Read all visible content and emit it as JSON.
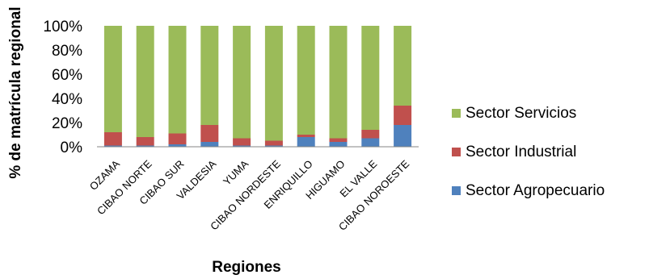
{
  "chart_data": {
    "type": "bar",
    "stacked": true,
    "normalized": true,
    "categories": [
      "OZAMA",
      "CIBAO NORTE",
      "CIBAO SUR",
      "VALDESIA",
      "YUMA",
      "CIBAO NORDESTE",
      "ENRIQUILLO",
      "HIGUAMO",
      "EL VALLE",
      "CIBAO NOROESTE"
    ],
    "series": [
      {
        "name": "Sector Agropecuario",
        "color": "#4F81BD",
        "values": [
          1,
          1,
          2,
          4,
          1,
          1,
          8,
          4,
          7,
          18
        ]
      },
      {
        "name": "Sector Industrial",
        "color": "#C0504D",
        "values": [
          11,
          7,
          9,
          14,
          6,
          4,
          2,
          3,
          7,
          16
        ]
      },
      {
        "name": "Sector Servicios",
        "color": "#9BBB59",
        "values": [
          88,
          92,
          89,
          82,
          93,
          95,
          90,
          93,
          86,
          66
        ]
      }
    ],
    "ytick_labels": [
      "0%",
      "20%",
      "40%",
      "60%",
      "80%",
      "100%"
    ],
    "ylim": [
      0,
      100
    ],
    "xlabel": "Regiones",
    "ylabel": "% de matrícula regional",
    "title": "",
    "legend_position": "right",
    "legend_order": [
      "Sector Servicios",
      "Sector Industrial",
      "Sector Agropecuario"
    ],
    "grid": false
  }
}
